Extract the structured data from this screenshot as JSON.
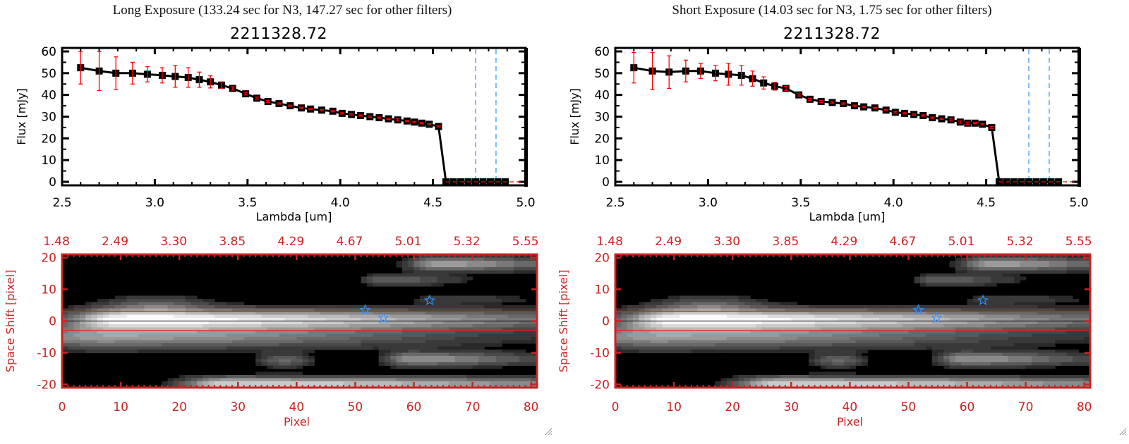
{
  "panels": [
    {
      "id": "long",
      "title": "Long Exposure (133.24 sec for N3, 147.27 sec for other filters)",
      "subtitle": "2211328.72"
    },
    {
      "id": "short",
      "title": "Short Exposure (14.03 sec for N3, 1.75 sec for other filters)",
      "subtitle": "2211328.72"
    }
  ],
  "colors": {
    "spectrum_line": "#000000",
    "error_bar": "#ff0000",
    "marker_fill": "#000000",
    "filter_line": "#3399ff",
    "zero_line": "#ff0000",
    "image_axis": "#cc2222",
    "aperture_line": "#ff1111",
    "center_line": "#000000",
    "star_marker": "#2f8fff"
  },
  "chart_data": [
    {
      "type": "line",
      "panel": "long",
      "title": "2211328.72",
      "xlabel": "Lambda [um]",
      "ylabel": "Flux [mJy]",
      "xlim": [
        2.5,
        5.0
      ],
      "ylim": [
        -2,
        62
      ],
      "xticks": [
        "2.5",
        "3.0",
        "3.5",
        "4.0",
        "4.5",
        "5.0"
      ],
      "xtick_values": [
        2.5,
        3.0,
        3.5,
        4.0,
        4.5,
        5.0
      ],
      "yticks": [
        "0",
        "10",
        "20",
        "30",
        "40",
        "50",
        "60"
      ],
      "ytick_values": [
        0,
        10,
        20,
        30,
        40,
        50,
        60
      ],
      "series": [
        {
          "name": "flux",
          "x": [
            2.6,
            2.7,
            2.79,
            2.88,
            2.96,
            3.04,
            3.11,
            3.18,
            3.24,
            3.3,
            3.36,
            3.42,
            3.49,
            3.55,
            3.61,
            3.67,
            3.73,
            3.79,
            3.84,
            3.9,
            3.96,
            4.01,
            4.06,
            4.11,
            4.16,
            4.21,
            4.26,
            4.31,
            4.36,
            4.4,
            4.44,
            4.48,
            4.53,
            4.57,
            4.61,
            4.65,
            4.69,
            4.73,
            4.77,
            4.81,
            4.85,
            4.89
          ],
          "y": [
            52.5,
            51,
            50,
            50,
            49.5,
            49,
            48.5,
            48,
            47,
            46,
            44.5,
            43,
            40.5,
            38.5,
            37,
            36,
            35,
            34,
            33.5,
            33,
            32.5,
            31.5,
            31,
            30.5,
            30,
            29.5,
            29,
            28.5,
            28,
            27.5,
            27,
            26.5,
            25.5,
            0,
            0,
            0,
            0,
            0,
            0,
            0,
            0,
            0
          ],
          "err": [
            7.5,
            9,
            7.5,
            5,
            3.5,
            3.5,
            5,
            4.5,
            3.5,
            2.8,
            1.5,
            0.8,
            0.5,
            0.5,
            0.5,
            0.3,
            0.3,
            0.3,
            0.3,
            0.3,
            0.3,
            0.3,
            0.3,
            0.3,
            0.3,
            0.3,
            0.3,
            0.5,
            0.3,
            0.3,
            0.3,
            0.3,
            0.3,
            0,
            0,
            0,
            0,
            0,
            0,
            0,
            0,
            0
          ]
        }
      ],
      "zero_line": {
        "y": 0,
        "x_from": 4.57,
        "x_to": 5.0,
        "style": "dashed"
      },
      "filter_lines": [
        4.73,
        4.84
      ]
    },
    {
      "type": "line",
      "panel": "short",
      "title": "2211328.72",
      "xlabel": "Lambda [um]",
      "ylabel": "Flux [mJy]",
      "xlim": [
        2.5,
        5.0
      ],
      "ylim": [
        -2,
        62
      ],
      "xticks": [
        "2.5",
        "3.0",
        "3.5",
        "4.0",
        "4.5",
        "5.0"
      ],
      "xtick_values": [
        2.5,
        3.0,
        3.5,
        4.0,
        4.5,
        5.0
      ],
      "yticks": [
        "0",
        "10",
        "20",
        "30",
        "40",
        "50",
        "60"
      ],
      "ytick_values": [
        0,
        10,
        20,
        30,
        40,
        50,
        60
      ],
      "series": [
        {
          "name": "flux",
          "x": [
            2.6,
            2.7,
            2.79,
            2.88,
            2.96,
            3.04,
            3.11,
            3.18,
            3.24,
            3.3,
            3.36,
            3.42,
            3.49,
            3.55,
            3.61,
            3.67,
            3.73,
            3.79,
            3.84,
            3.9,
            3.96,
            4.01,
            4.06,
            4.11,
            4.16,
            4.21,
            4.26,
            4.31,
            4.36,
            4.4,
            4.44,
            4.48,
            4.53,
            4.57,
            4.61,
            4.65,
            4.69,
            4.73,
            4.77,
            4.81,
            4.85,
            4.89
          ],
          "y": [
            52.5,
            51,
            50.5,
            51,
            51,
            50,
            49.5,
            49,
            47.5,
            45.5,
            44,
            43,
            40,
            38,
            37,
            36.5,
            36,
            35,
            34.5,
            34,
            33,
            32,
            31.5,
            31,
            30.5,
            29.5,
            29,
            28.5,
            27.5,
            27,
            27,
            26.5,
            25,
            0,
            0,
            0,
            0,
            0,
            0,
            0,
            0,
            0
          ],
          "err": [
            7,
            8.5,
            7.5,
            5,
            3.5,
            3.5,
            5,
            4.5,
            3.5,
            2.8,
            1.8,
            1,
            0.5,
            0.5,
            0.5,
            0.3,
            0.3,
            0.3,
            0.3,
            0.3,
            0.3,
            0.3,
            0.3,
            0.3,
            0.3,
            0.3,
            0.3,
            0.5,
            0.5,
            0.5,
            0.3,
            0.3,
            0.5,
            0,
            0,
            0,
            0,
            0,
            0,
            0,
            0,
            0
          ]
        }
      ],
      "zero_line": {
        "y": 0,
        "x_from": 4.57,
        "x_to": 5.0,
        "style": "dashed"
      },
      "filter_lines": [
        4.73,
        4.84
      ]
    },
    {
      "type": "heatmap",
      "panel": "long",
      "xlabel": "Pixel",
      "ylabel": "Space Shift [pixel]",
      "xlim": [
        0,
        81
      ],
      "ylim": [
        -21,
        21
      ],
      "xticks": [
        "0",
        "10",
        "20",
        "30",
        "40",
        "50",
        "60",
        "70",
        "80"
      ],
      "xtick_values": [
        0,
        10,
        20,
        30,
        40,
        50,
        60,
        70,
        80
      ],
      "yticks": [
        "-20",
        "-10",
        "0",
        "10",
        "20"
      ],
      "ytick_values": [
        -20,
        -10,
        0,
        10,
        20
      ],
      "top_ticks": [
        "1.48",
        "2.49",
        "3.30",
        "3.85",
        "4.29",
        "4.67",
        "5.01",
        "5.32",
        "5.55"
      ],
      "aperture_lines": [
        3,
        -3
      ],
      "center_line": 0,
      "stars": [
        {
          "x": 51.7,
          "y": 3.5
        },
        {
          "x": 54.8,
          "y": 1.0
        },
        {
          "x": 62.7,
          "y": 6.5
        }
      ],
      "sources": [
        {
          "x": 10,
          "y": 0.5,
          "peak": 1.0,
          "sx": 6,
          "sy": 2.2,
          "tail": 45
        },
        {
          "x": 6,
          "y": -5,
          "peak": 0.55,
          "sx": 10,
          "sy": 2.5,
          "tail": 30
        },
        {
          "x": 16,
          "y": 5,
          "peak": 0.3,
          "sx": 6,
          "sy": 2
        },
        {
          "x": 28,
          "y": -20,
          "peak": 0.85,
          "sx": 5,
          "sy": 1.6,
          "tail": 45
        },
        {
          "x": 38,
          "y": -12.5,
          "peak": 0.35,
          "sx": 3,
          "sy": 1.5
        },
        {
          "x": 59.5,
          "y": -12,
          "peak": 0.55,
          "sx": 3,
          "sy": 1.5,
          "tail": 12
        },
        {
          "x": 64,
          "y": 18,
          "peak": 0.6,
          "sx": 3.5,
          "sy": 1.5,
          "tail": 12
        },
        {
          "x": 55,
          "y": 13,
          "peak": 0.35,
          "sx": 2.5,
          "sy": 1.2,
          "tail": 6
        },
        {
          "x": 65,
          "y": 7,
          "peak": 0.15,
          "sx": 4,
          "sy": 1.2,
          "tail": 8
        }
      ]
    },
    {
      "type": "heatmap",
      "panel": "short",
      "xlabel": "Pixel",
      "ylabel": "Space Shift [pixel]",
      "xlim": [
        0,
        81
      ],
      "ylim": [
        -21,
        21
      ],
      "xticks": [
        "0",
        "10",
        "20",
        "30",
        "40",
        "50",
        "60",
        "70",
        "80"
      ],
      "xtick_values": [
        0,
        10,
        20,
        30,
        40,
        50,
        60,
        70,
        80
      ],
      "yticks": [
        "-20",
        "-10",
        "0",
        "10",
        "20"
      ],
      "ytick_values": [
        -20,
        -10,
        0,
        10,
        20
      ],
      "top_ticks": [
        "1.48",
        "2.49",
        "3.30",
        "3.85",
        "4.29",
        "4.67",
        "5.01",
        "5.32",
        "5.55"
      ],
      "aperture_lines": [
        3,
        -3
      ],
      "center_line": 0,
      "stars": [
        {
          "x": 51.7,
          "y": 3.5
        },
        {
          "x": 54.8,
          "y": 1.0
        },
        {
          "x": 62.7,
          "y": 6.5
        }
      ],
      "sources": [
        {
          "x": 10,
          "y": 0.5,
          "peak": 1.0,
          "sx": 6,
          "sy": 2.2,
          "tail": 45
        },
        {
          "x": 6,
          "y": -5,
          "peak": 0.55,
          "sx": 10,
          "sy": 2.5,
          "tail": 30
        },
        {
          "x": 16,
          "y": 5,
          "peak": 0.3,
          "sx": 6,
          "sy": 2
        },
        {
          "x": 28,
          "y": -20,
          "peak": 0.85,
          "sx": 5,
          "sy": 1.6,
          "tail": 45
        },
        {
          "x": 38,
          "y": -12.5,
          "peak": 0.35,
          "sx": 3,
          "sy": 1.5
        },
        {
          "x": 59.5,
          "y": -12,
          "peak": 0.55,
          "sx": 3,
          "sy": 1.5,
          "tail": 12
        },
        {
          "x": 64,
          "y": 18,
          "peak": 0.6,
          "sx": 3.5,
          "sy": 1.5,
          "tail": 12
        },
        {
          "x": 55,
          "y": 13,
          "peak": 0.35,
          "sx": 2.5,
          "sy": 1.2,
          "tail": 6
        },
        {
          "x": 65,
          "y": 7,
          "peak": 0.15,
          "sx": 4,
          "sy": 1.2,
          "tail": 8
        }
      ]
    }
  ]
}
